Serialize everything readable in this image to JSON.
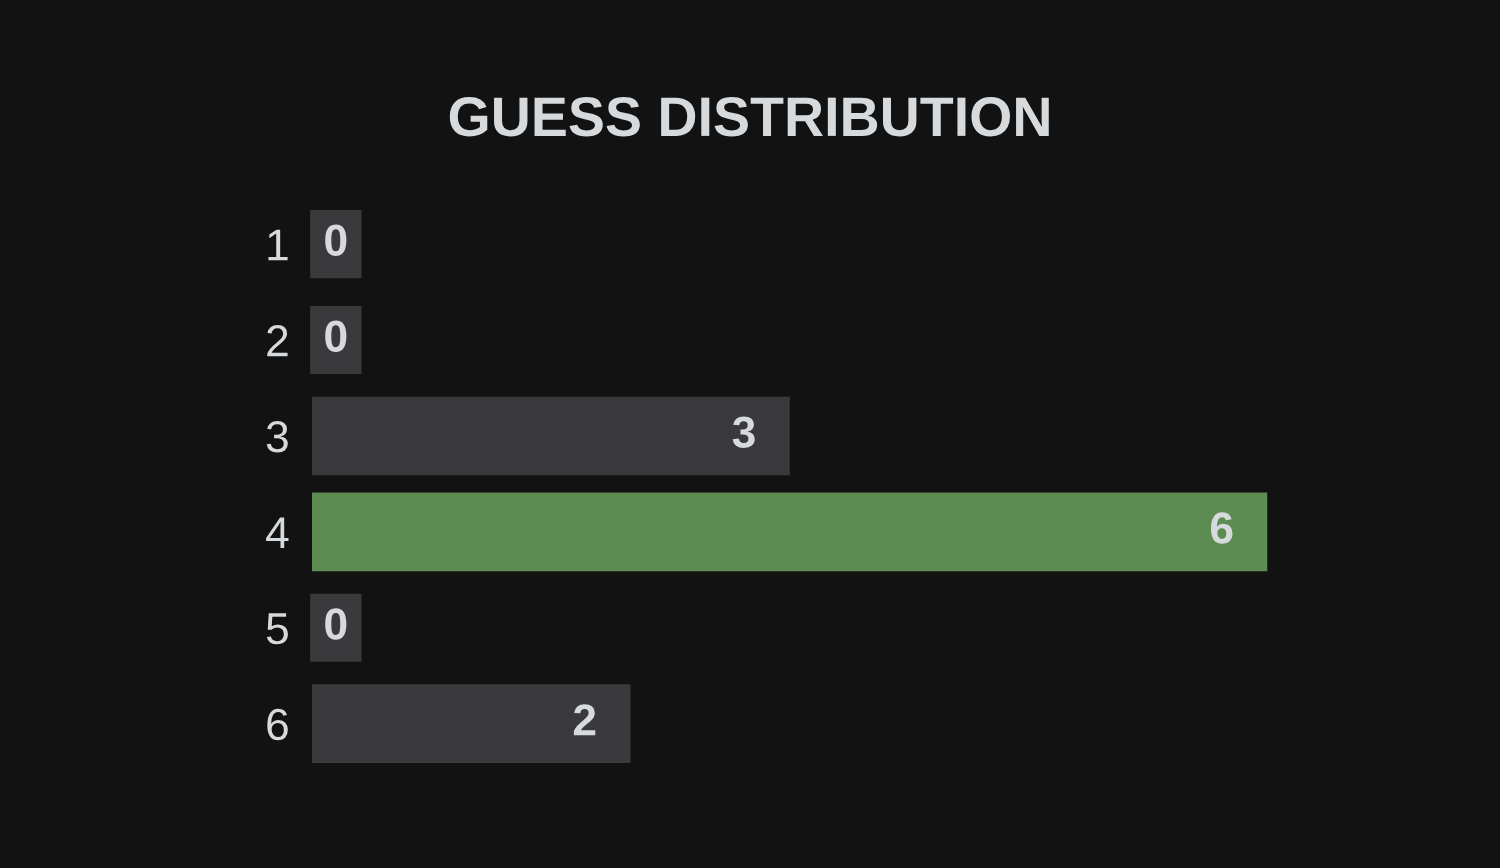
{
  "chart_data": {
    "type": "bar",
    "orientation": "horizontal",
    "title": "GUESS DISTRIBUTION",
    "categories": [
      "1",
      "2",
      "3",
      "4",
      "5",
      "6"
    ],
    "values": [
      0,
      0,
      3,
      6,
      0,
      2
    ],
    "colors": [
      "#3a3a3c",
      "#3a3a3c",
      "#3a3a3c",
      "#5c8c51",
      "#3a3a3c",
      "#3a3a3c"
    ],
    "data_labels": true
  }
}
